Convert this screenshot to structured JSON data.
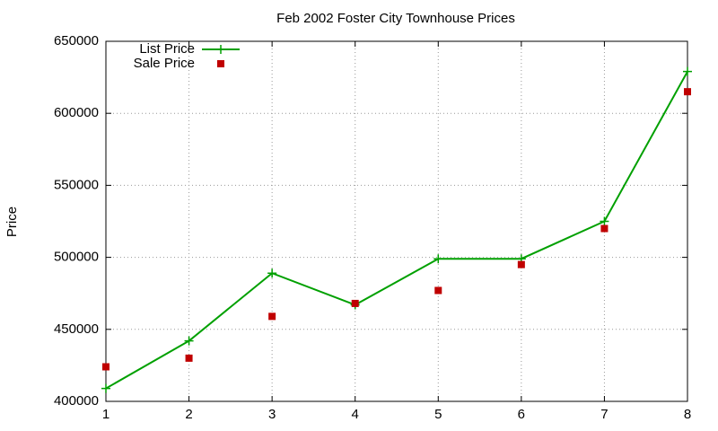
{
  "chart_data": {
    "type": "line",
    "title": "Feb 2002 Foster City Townhouse Prices",
    "ylabel": "Price",
    "x": [
      1,
      2,
      3,
      4,
      5,
      6,
      7,
      8
    ],
    "series": [
      {
        "name": "List Price",
        "color": "#00a000",
        "style": "linespoints",
        "values": [
          409000,
          442000,
          489000,
          467000,
          499000,
          499000,
          525000,
          629000
        ]
      },
      {
        "name": "Sale Price",
        "color": "#c00000",
        "style": "points",
        "values": [
          424000,
          430000,
          459000,
          468000,
          477000,
          495000,
          520000,
          615000
        ]
      }
    ],
    "xlim": [
      1,
      8
    ],
    "xticks": [
      1,
      2,
      3,
      4,
      5,
      6,
      7,
      8
    ],
    "ylim": [
      400000,
      650000
    ],
    "yticks": [
      400000,
      450000,
      500000,
      550000,
      600000,
      650000
    ],
    "grid": true,
    "legend": "top-left"
  }
}
